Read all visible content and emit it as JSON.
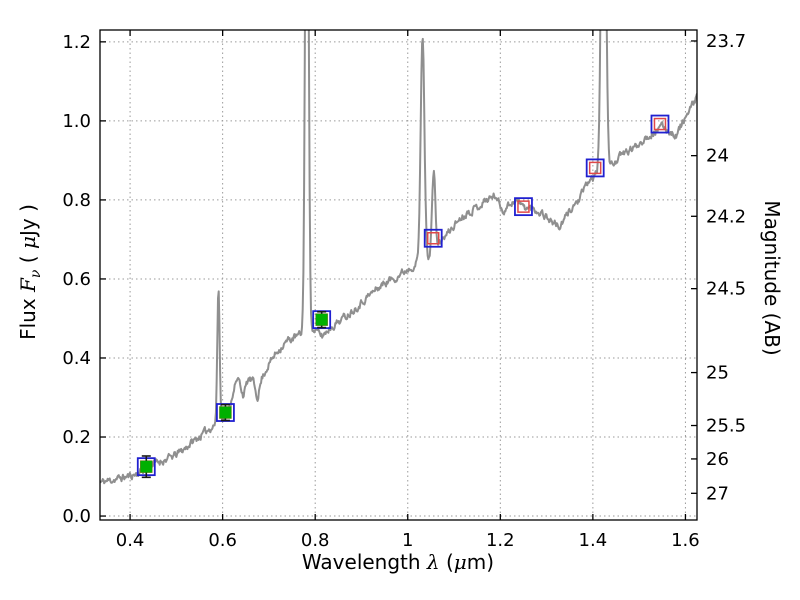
{
  "figure": {
    "xlabel": {
      "pre": "Wavelength ",
      "sym": "λ",
      "mid": " (",
      "mu": "μ",
      "post": "m)"
    },
    "ylabel_left": {
      "pre": "Flux ",
      "sym": "F",
      "sub": "ν",
      "mid": " ( ",
      "mu": "μ",
      "post": "Jy )"
    },
    "ylabel_right": "Magnitude (AB)"
  },
  "chart_data": {
    "type": "line",
    "title": "",
    "xlabel": "Wavelength λ (μm)",
    "ylabel_left": "Flux Fν (μJy)",
    "ylabel_right": "Magnitude (AB)",
    "xlim": [
      0.335,
      1.625
    ],
    "ylim": [
      -0.01,
      1.23
    ],
    "grid": true,
    "grid_color": "#9a9a9a",
    "frame_color": "#000000",
    "ab_zeropoint": 23.9,
    "x_ticks": [
      {
        "v": 0.4,
        "label": "0.4"
      },
      {
        "v": 0.6,
        "label": "0.6"
      },
      {
        "v": 0.8,
        "label": "0.8"
      },
      {
        "v": 1.0,
        "label": "1"
      },
      {
        "v": 1.2,
        "label": "1.2"
      },
      {
        "v": 1.4,
        "label": "1.4"
      },
      {
        "v": 1.6,
        "label": "1.6"
      }
    ],
    "y_ticks_left": [
      {
        "v": 0.0,
        "label": "0.0"
      },
      {
        "v": 0.2,
        "label": "0.2"
      },
      {
        "v": 0.4,
        "label": "0.4"
      },
      {
        "v": 0.6,
        "label": "0.6"
      },
      {
        "v": 0.8,
        "label": "0.8"
      },
      {
        "v": 1.0,
        "label": "1.0"
      },
      {
        "v": 1.2,
        "label": "1.2"
      }
    ],
    "y_ticks_right": [
      {
        "mag": 23.7,
        "label": "23.7"
      },
      {
        "mag": 24.0,
        "label": "24"
      },
      {
        "mag": 24.2,
        "label": "24.2"
      },
      {
        "mag": 24.5,
        "label": "24.5"
      },
      {
        "mag": 25.0,
        "label": "25"
      },
      {
        "mag": 25.5,
        "label": "25.5"
      },
      {
        "mag": 26.0,
        "label": "26"
      },
      {
        "mag": 27.0,
        "label": "27"
      }
    ],
    "spectrum": {
      "color": "#8f8f8f",
      "linewidth": 2,
      "noise": {
        "seed": 11,
        "amplitude": 0.008,
        "step": 0.0015
      },
      "continuum_anchors": [
        [
          0.335,
          0.085
        ],
        [
          0.355,
          0.09
        ],
        [
          0.375,
          0.095
        ],
        [
          0.395,
          0.1
        ],
        [
          0.415,
          0.107
        ],
        [
          0.435,
          0.122
        ],
        [
          0.455,
          0.135
        ],
        [
          0.475,
          0.142
        ],
        [
          0.495,
          0.152
        ],
        [
          0.515,
          0.168
        ],
        [
          0.535,
          0.188
        ],
        [
          0.555,
          0.205
        ],
        [
          0.575,
          0.225
        ],
        [
          0.59,
          0.238
        ],
        [
          0.605,
          0.255
        ],
        [
          0.615,
          0.27
        ],
        [
          0.625,
          0.33
        ],
        [
          0.635,
          0.345
        ],
        [
          0.645,
          0.305
        ],
        [
          0.655,
          0.345
        ],
        [
          0.665,
          0.343
        ],
        [
          0.675,
          0.3
        ],
        [
          0.685,
          0.35
        ],
        [
          0.7,
          0.385
        ],
        [
          0.72,
          0.42
        ],
        [
          0.74,
          0.443
        ],
        [
          0.76,
          0.455
        ],
        [
          0.78,
          0.463
        ],
        [
          0.8,
          0.47
        ],
        [
          0.815,
          0.455
        ],
        [
          0.83,
          0.475
        ],
        [
          0.85,
          0.492
        ],
        [
          0.87,
          0.51
        ],
        [
          0.89,
          0.53
        ],
        [
          0.91,
          0.552
        ],
        [
          0.93,
          0.572
        ],
        [
          0.95,
          0.59
        ],
        [
          0.97,
          0.602
        ],
        [
          0.99,
          0.617
        ],
        [
          1.005,
          0.63
        ],
        [
          1.02,
          0.64
        ],
        [
          1.045,
          0.655
        ],
        [
          1.06,
          0.675
        ],
        [
          1.075,
          0.7
        ],
        [
          1.09,
          0.72
        ],
        [
          1.11,
          0.75
        ],
        [
          1.13,
          0.77
        ],
        [
          1.15,
          0.782
        ],
        [
          1.17,
          0.8
        ],
        [
          1.19,
          0.812
        ],
        [
          1.205,
          0.772
        ],
        [
          1.22,
          0.79
        ],
        [
          1.235,
          0.8
        ],
        [
          1.25,
          0.782
        ],
        [
          1.27,
          0.777
        ],
        [
          1.29,
          0.768
        ],
        [
          1.31,
          0.747
        ],
        [
          1.33,
          0.73
        ],
        [
          1.35,
          0.775
        ],
        [
          1.37,
          0.8
        ],
        [
          1.39,
          0.845
        ],
        [
          1.405,
          0.862
        ],
        [
          1.42,
          0.875
        ],
        [
          1.435,
          0.882
        ],
        [
          1.45,
          0.9
        ],
        [
          1.47,
          0.92
        ],
        [
          1.49,
          0.932
        ],
        [
          1.51,
          0.955
        ],
        [
          1.53,
          0.97
        ],
        [
          1.55,
          0.985
        ],
        [
          1.565,
          0.975
        ],
        [
          1.58,
          0.962
        ],
        [
          1.595,
          1.0
        ],
        [
          1.61,
          1.025
        ],
        [
          1.625,
          1.065
        ]
      ],
      "emission_lines": [
        {
          "center": 0.591,
          "amplitude": 0.34,
          "sigma": 0.0025
        },
        {
          "center": 0.782,
          "amplitude": 1.6,
          "sigma": 0.0035
        },
        {
          "center": 1.032,
          "amplitude": 0.57,
          "sigma": 0.004
        },
        {
          "center": 1.056,
          "amplitude": 0.2,
          "sigma": 0.0035
        },
        {
          "center": 1.423,
          "amplitude": 1.2,
          "sigma": 0.0045
        }
      ]
    },
    "photometry": {
      "model_squares_blue": {
        "color": "#2020d0",
        "size": 17,
        "stroke_width": 1.8,
        "points": [
          [
            0.435,
            0.125
          ],
          [
            0.606,
            0.262
          ],
          [
            0.814,
            0.497
          ],
          [
            1.055,
            0.703
          ],
          [
            1.25,
            0.783
          ],
          [
            1.405,
            0.881
          ],
          [
            1.545,
            0.992
          ]
        ]
      },
      "model_squares_red": {
        "color": "#e04848",
        "size": 11,
        "stroke_width": 1.5,
        "points": [
          [
            0.435,
            0.125
          ],
          [
            0.606,
            0.262
          ],
          [
            0.814,
            0.497
          ],
          [
            1.055,
            0.703
          ],
          [
            1.25,
            0.783
          ],
          [
            1.405,
            0.881
          ],
          [
            1.545,
            0.992
          ]
        ]
      },
      "observed_green": {
        "color": "#00b000",
        "err_color": "#1a1a1a",
        "size": 12,
        "cap_halfwidth": 4.5,
        "points": [
          {
            "x": 0.435,
            "y": 0.125,
            "err": 0.027
          },
          {
            "x": 0.606,
            "y": 0.262,
            "err": 0.02
          },
          {
            "x": 0.814,
            "y": 0.497,
            "err": 0.02
          }
        ]
      }
    }
  }
}
